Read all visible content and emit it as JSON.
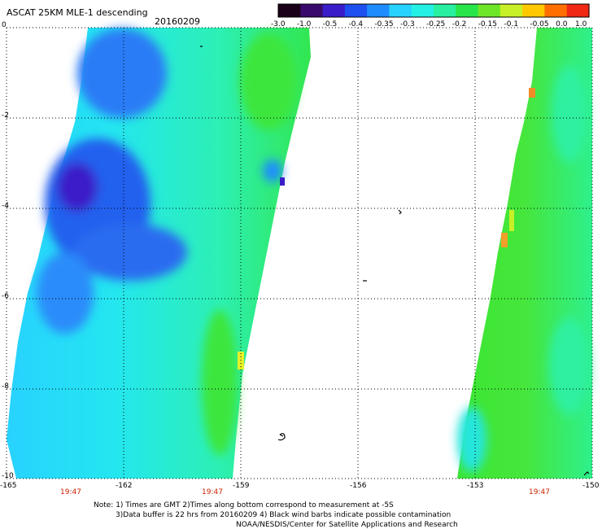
{
  "title": {
    "product": "ASCAT 25KM MLE-1 descending",
    "date": "20160209"
  },
  "colorbar": {
    "labels": [
      "-3.0",
      "-1.0",
      "-0.5",
      "-0.4",
      "-0.35",
      "-0.3",
      "-0.25",
      "-0.2",
      "-0.15",
      "-0.1",
      "-0.05",
      "0.0",
      "1.0"
    ],
    "colors": [
      "#1a0018",
      "#3a0a6a",
      "#3a1cc8",
      "#1e50f0",
      "#1e8cff",
      "#28d2ff",
      "#24f0e6",
      "#28f0a0",
      "#28e64a",
      "#6ee628",
      "#c8f028",
      "#ffc800",
      "#ff6e00",
      "#f02814"
    ]
  },
  "y_axis": {
    "labels": [
      "0",
      "-2",
      "-4",
      "-6",
      "-8",
      "-10"
    ]
  },
  "x_axis": {
    "labels": [
      "-165",
      "-162",
      "-159",
      "-156",
      "-153",
      "-150"
    ]
  },
  "times": [
    "19:47",
    "19:47",
    "19:47"
  ],
  "notes": [
    "Note: 1) Times are GMT 2)Times along bottom correspond to measurement at -5S",
    "3)Data buffer is 22 hrs from 20160209 4) Black wind barbs indicate possible contamination",
    "NOAA/NESDIS/Center for Satellite Applications and Research"
  ]
}
